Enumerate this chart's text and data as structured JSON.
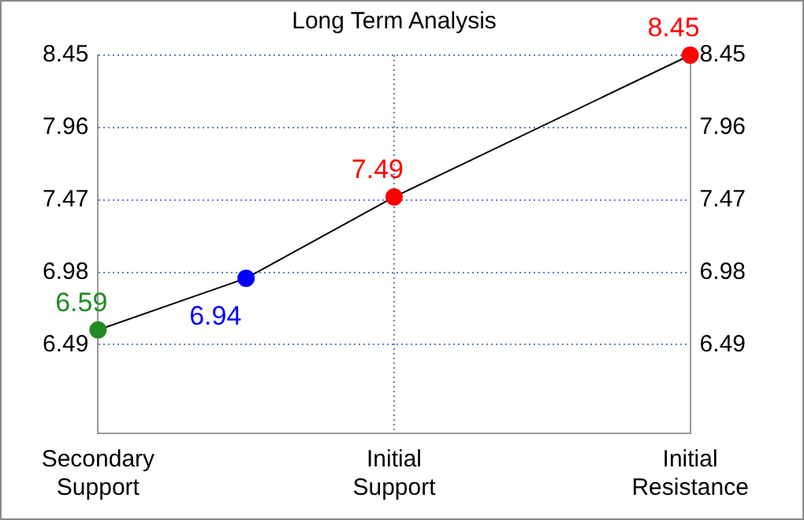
{
  "chart_data": {
    "type": "line",
    "title": "Long Term Analysis",
    "categories": [
      "Secondary Support",
      null,
      "Initial Support",
      null,
      "Initial Resistance"
    ],
    "series": [
      {
        "color": "#000000",
        "colors": [
          "#228b22",
          "#0000ff",
          "#ff0000",
          null,
          "#ff0000"
        ],
        "values": [
          6.59,
          6.94,
          7.49,
          null,
          8.45
        ]
      }
    ],
    "ylim": [
      5.89,
      8.45
    ],
    "yticks": [
      6.49,
      6.98,
      7.47,
      7.96,
      8.45
    ],
    "y2lim": [
      5.89,
      8.45
    ],
    "y2ticks": [
      6.49,
      6.98,
      7.47,
      7.96,
      8.45
    ],
    "grid": true,
    "marker": "circle",
    "line_style": "solid",
    "data_labels": true
  }
}
